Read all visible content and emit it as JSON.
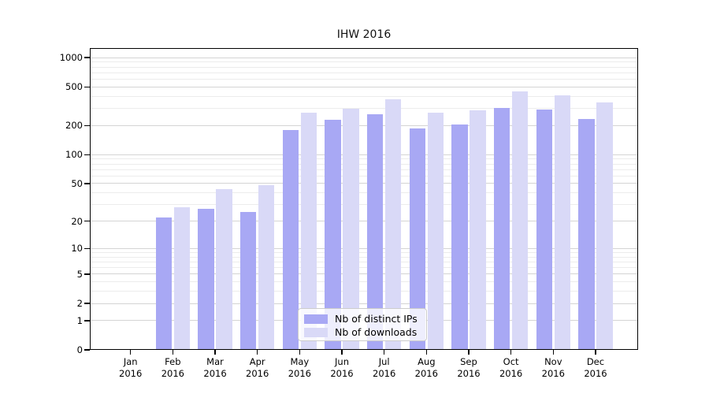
{
  "chart_data": {
    "type": "bar",
    "title": "IHW 2016",
    "categories": [
      "Jan",
      "Feb",
      "Mar",
      "Apr",
      "May",
      "Jun",
      "Jul",
      "Aug",
      "Sep",
      "Oct",
      "Nov",
      "Dec"
    ],
    "year_label": "2016",
    "series": [
      {
        "name": "Nb of distinct IPs",
        "color": "#a8a8f4",
        "values": [
          0,
          22,
          27,
          25,
          180,
          230,
          260,
          185,
          205,
          305,
          290,
          235
        ]
      },
      {
        "name": "Nb of downloads",
        "color": "#d9d9f7",
        "values": [
          0,
          28,
          44,
          48,
          272,
          300,
          376,
          272,
          288,
          450,
          410,
          346
        ]
      }
    ],
    "yscale": "log1p",
    "ylim": [
      0,
      1000
    ],
    "yticks": [
      0,
      1,
      2,
      5,
      10,
      20,
      50,
      100,
      200,
      500,
      1000
    ],
    "yticks_minor": [
      3,
      4,
      6,
      7,
      8,
      9,
      30,
      40,
      60,
      70,
      80,
      90,
      300,
      400,
      600,
      700,
      800,
      900
    ],
    "grid": true,
    "legend_position": "lower center"
  },
  "colors": {
    "grid_major": "#d4d4d4",
    "grid_minor": "#ececec",
    "axis": "#000000",
    "background": "#ffffff"
  }
}
